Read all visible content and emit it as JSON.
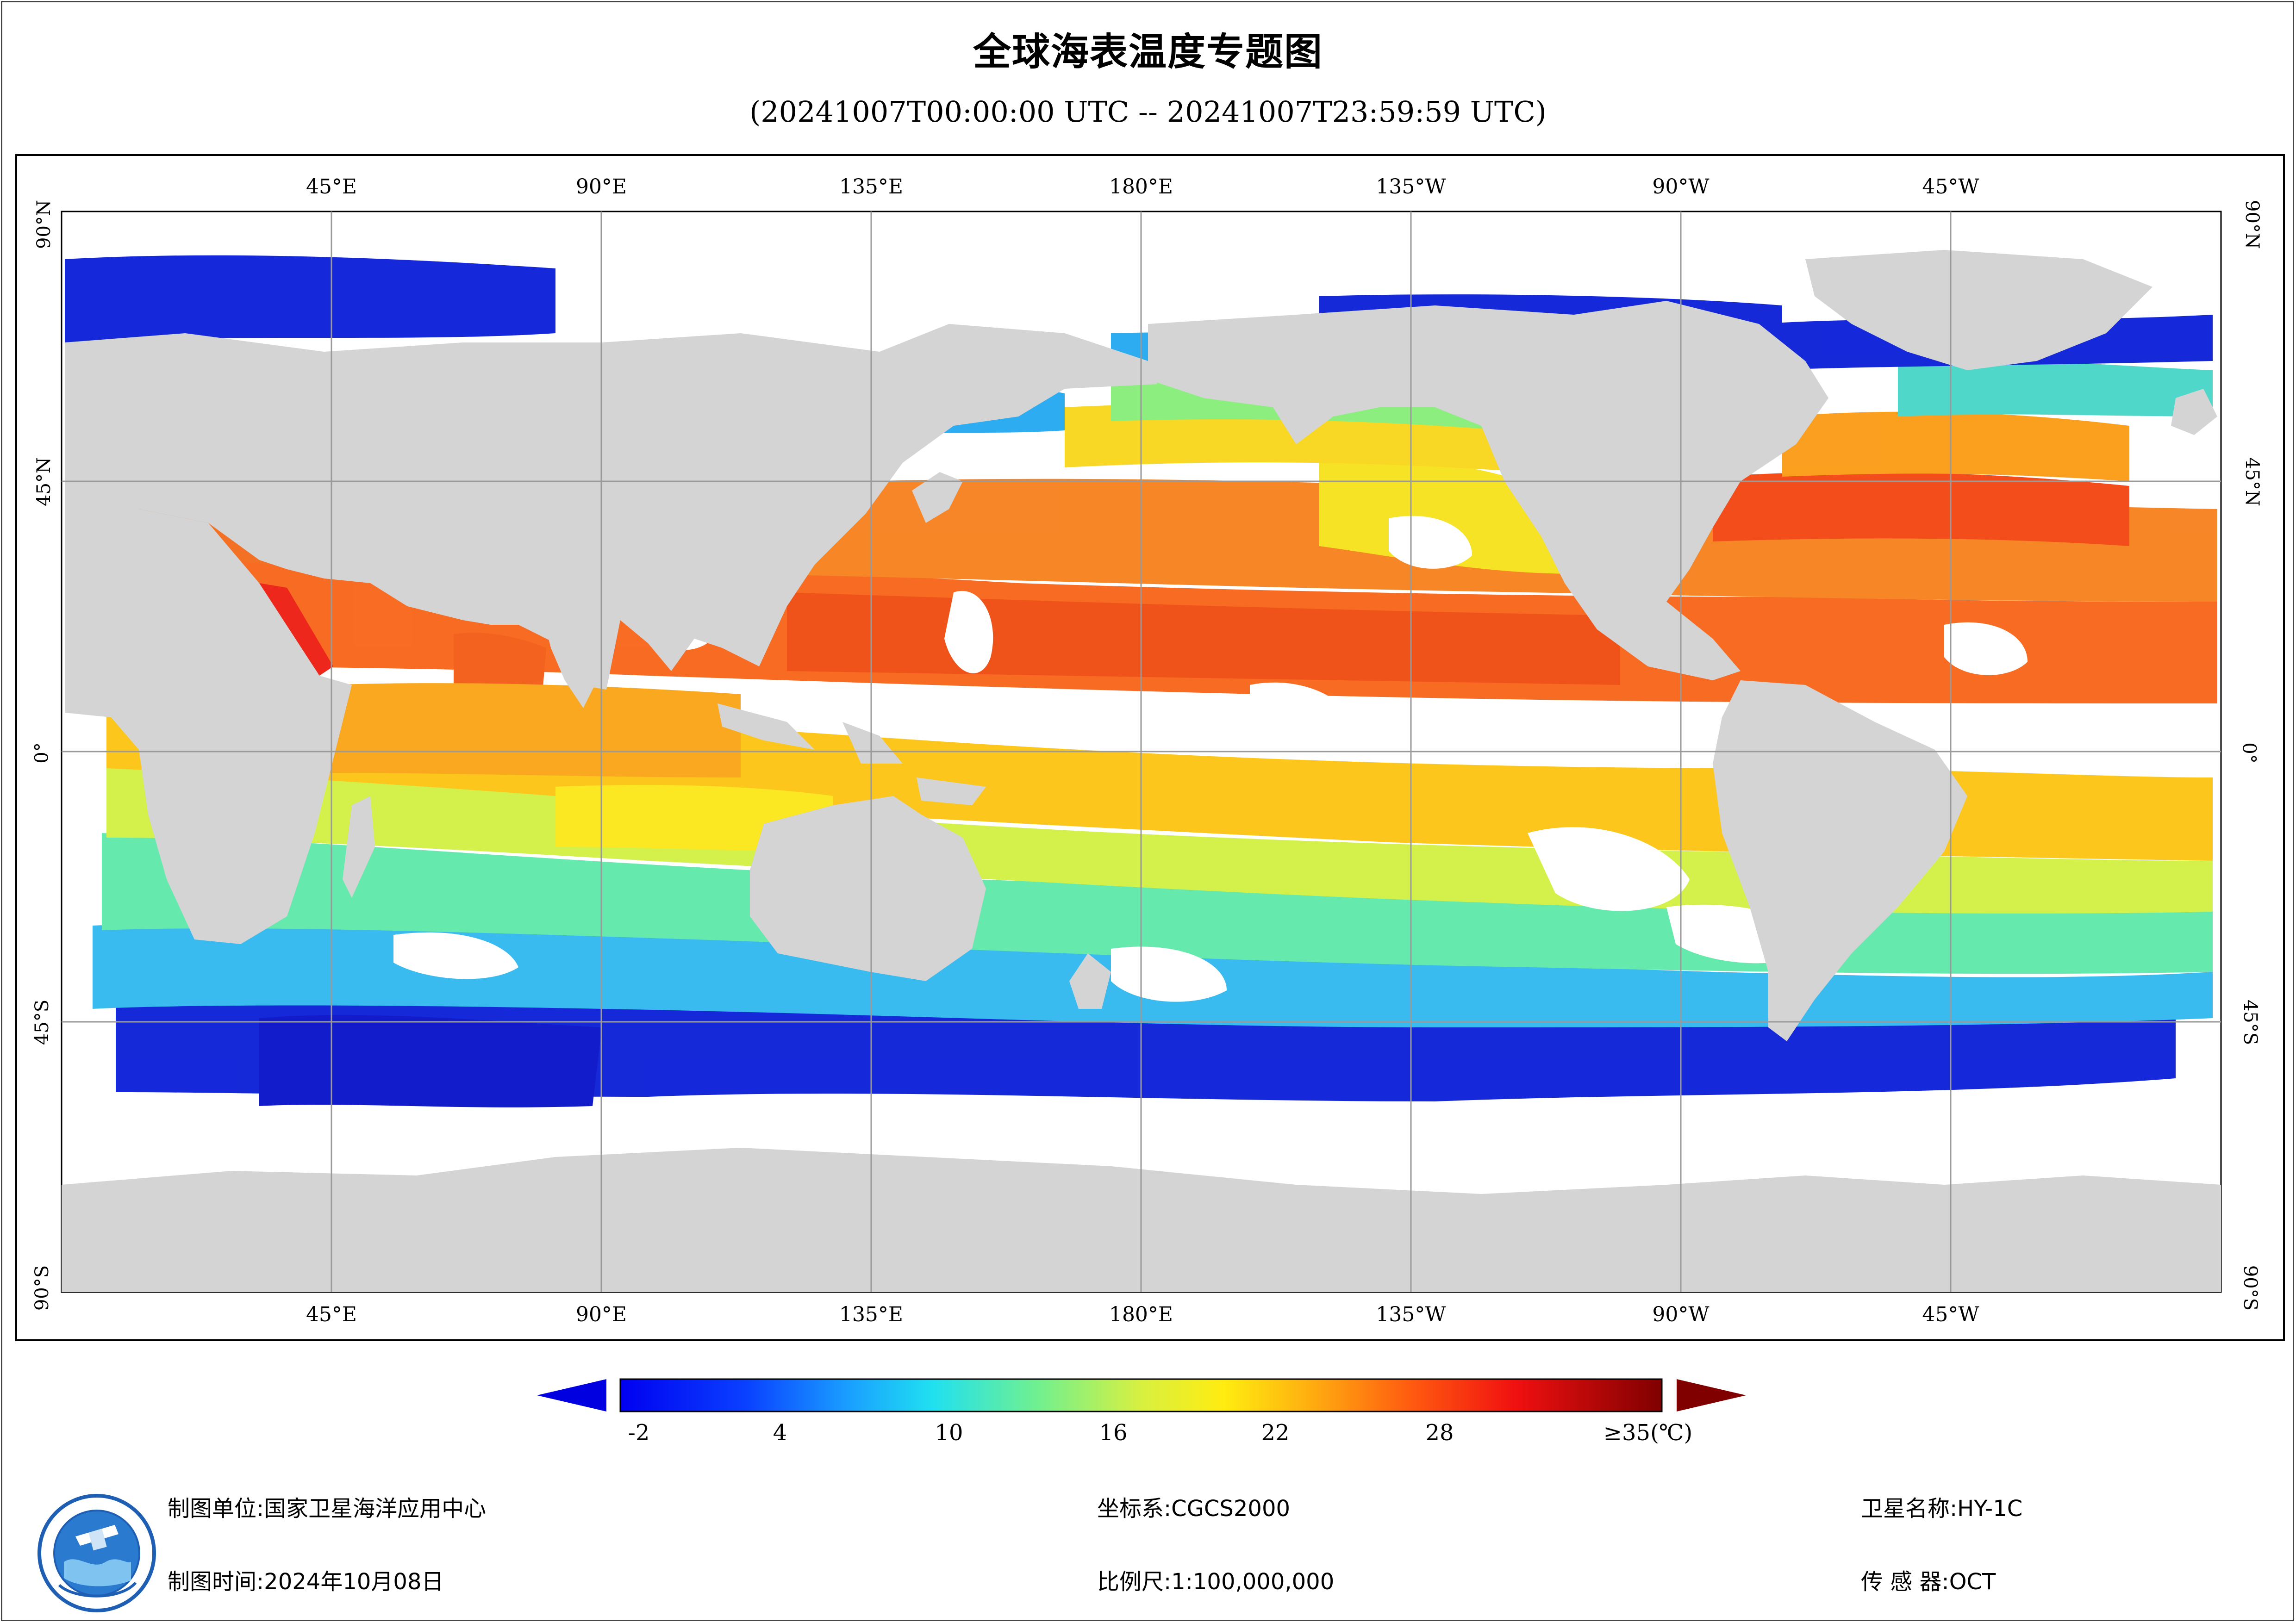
{
  "header": {
    "title": "全球海表温度专题图",
    "subtitle": "(20241007T00:00:00 UTC -- 20241007T23:59:59 UTC)"
  },
  "map": {
    "lon_labels": [
      "45°E",
      "90°E",
      "135°E",
      "180°E",
      "135°W",
      "90°W",
      "45°W"
    ],
    "lat_labels": [
      "90°N",
      "45°N",
      "0°",
      "45°S",
      "90°S"
    ],
    "colors": {
      "land": "#d4d4d4",
      "no_data": "#ffffff",
      "grid": "#9a9a9a"
    }
  },
  "legend": {
    "ticks": [
      "-2",
      "4",
      "10",
      "16",
      "22",
      "28",
      "≥35(℃)"
    ],
    "colors": {
      "below_min": "#0000e0",
      "above_max": "#800000"
    }
  },
  "footer": {
    "producer": "制图单位:国家卫星海洋应用中心",
    "produced_time": "制图时间:2024年10月08日",
    "crs": "坐标系:CGCS2000",
    "scale": "比例尺:1:100,000,000",
    "satellite": "卫星名称:HY-1C",
    "sensor": "传 感 器:OCT"
  }
}
